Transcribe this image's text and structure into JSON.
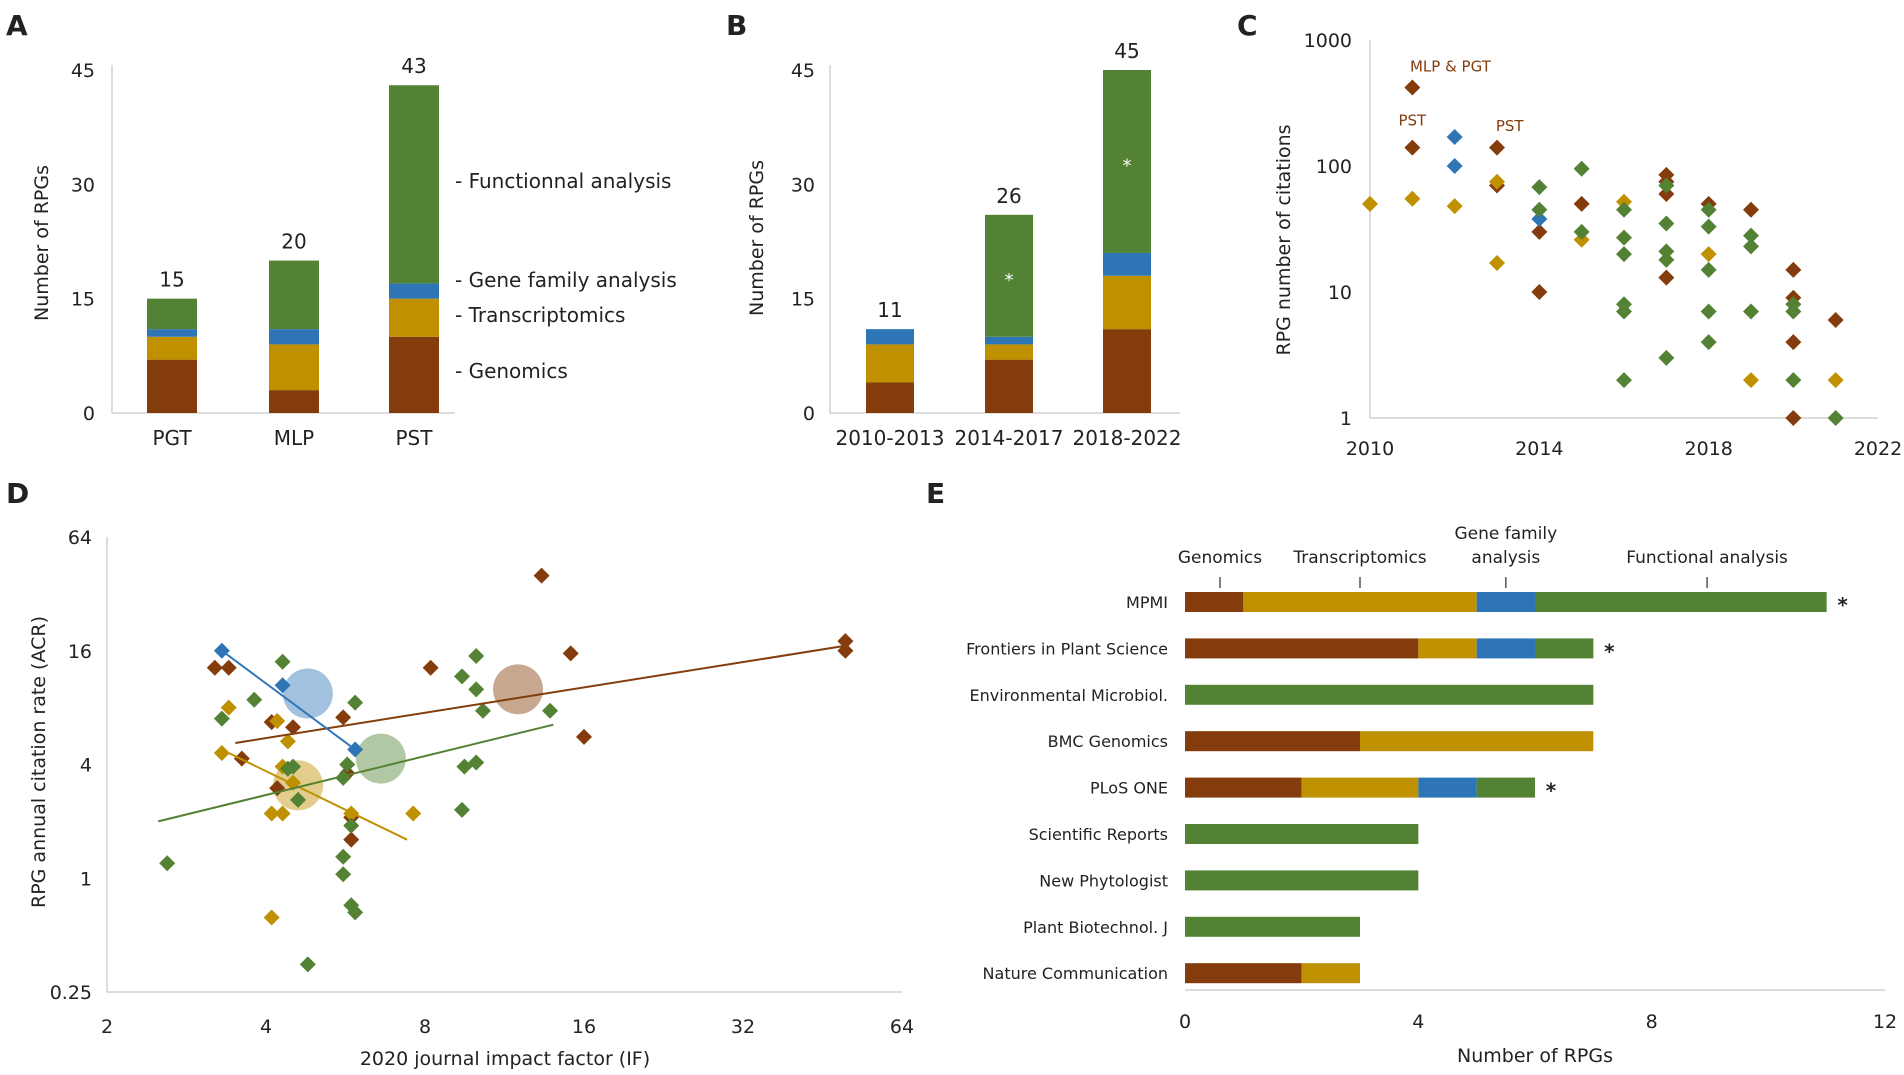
{
  "colors": {
    "genomics": "#843c0c",
    "transcriptomics": "#bf9000",
    "gene_family": "#2e75b6",
    "functional": "#548235"
  },
  "chart_data": [
    {
      "panel": "A",
      "type": "bar",
      "stacked": true,
      "title": "",
      "xlabel": "",
      "ylabel": "Number of RPGs",
      "ylim": [
        0,
        45
      ],
      "yticks": [
        "0",
        "15",
        "30",
        "45"
      ],
      "categories": [
        "PGT",
        "MLP",
        "PST"
      ],
      "totals": [
        "15",
        "20",
        "43"
      ],
      "series": [
        {
          "name": "- Genomics",
          "color_key": "genomics",
          "values": [
            7,
            3,
            10
          ]
        },
        {
          "name": "- Transcriptomics",
          "color_key": "transcriptomics",
          "values": [
            3,
            6,
            5
          ]
        },
        {
          "name": "- Gene family analysis",
          "color_key": "gene_family",
          "values": [
            1,
            2,
            2
          ]
        },
        {
          "name": "- Functionnal analysis",
          "color_key": "functional",
          "values": [
            4,
            9,
            26
          ]
        }
      ]
    },
    {
      "panel": "B",
      "type": "bar",
      "stacked": true,
      "xlabel": "",
      "ylabel": "Number of RPGs",
      "ylim": [
        0,
        45
      ],
      "yticks": [
        "0",
        "15",
        "30",
        "45"
      ],
      "categories": [
        "2010-2013",
        "2014-2017",
        "2018-2022"
      ],
      "totals": [
        "11",
        "26",
        "45"
      ],
      "series": [
        {
          "name": "Genomics",
          "color_key": "genomics",
          "values": [
            4,
            7,
            11
          ]
        },
        {
          "name": "Transcriptomics",
          "color_key": "transcriptomics",
          "values": [
            5,
            2,
            7
          ]
        },
        {
          "name": "Gene family analysis",
          "color_key": "gene_family",
          "values": [
            2,
            1,
            3
          ]
        },
        {
          "name": "Functional analysis",
          "color_key": "functional",
          "values": [
            0,
            16,
            24
          ]
        }
      ],
      "annotations": [
        {
          "category": "2014-2017",
          "text": "*"
        },
        {
          "category": "2018-2022",
          "text": "*"
        }
      ]
    },
    {
      "panel": "C",
      "type": "scatter",
      "xlabel": "",
      "ylabel": "RPG number of citations",
      "xlim": [
        2010,
        2022
      ],
      "ylim": [
        1,
        1000
      ],
      "yscale": "log",
      "xticks": [
        "2010",
        "2014",
        "2018",
        "2022"
      ],
      "yticks": [
        "1",
        "10",
        "100",
        "1000"
      ],
      "labels": [
        {
          "text": "MLP & PGT",
          "x": 2011.9,
          "y": 560
        },
        {
          "text": "PST",
          "x": 2011,
          "y": 210
        },
        {
          "text": "PST",
          "x": 2013.3,
          "y": 190
        }
      ],
      "series": [
        {
          "name": "Genomics",
          "color_key": "genomics",
          "points": [
            [
              2011,
              420
            ],
            [
              2011,
              140
            ],
            [
              2013,
              140
            ],
            [
              2013,
              70
            ],
            [
              2014,
              30
            ],
            [
              2014,
              10
            ],
            [
              2015,
              50
            ],
            [
              2017,
              85
            ],
            [
              2017,
              75
            ],
            [
              2017,
              60
            ],
            [
              2017,
              13
            ],
            [
              2018,
              50
            ],
            [
              2019,
              45
            ],
            [
              2020,
              15
            ],
            [
              2020,
              9
            ],
            [
              2020,
              4
            ],
            [
              2020,
              1
            ],
            [
              2021,
              6
            ]
          ]
        },
        {
          "name": "Transcriptomics",
          "color_key": "transcriptomics",
          "points": [
            [
              2010,
              50
            ],
            [
              2011,
              55
            ],
            [
              2012,
              48
            ],
            [
              2013,
              75
            ],
            [
              2013,
              17
            ],
            [
              2015,
              26
            ],
            [
              2016,
              52
            ],
            [
              2018,
              20
            ],
            [
              2019,
              2
            ],
            [
              2021,
              2
            ]
          ]
        },
        {
          "name": "Gene family analysis",
          "color_key": "gene_family",
          "points": [
            [
              2012,
              170
            ],
            [
              2012,
              100
            ],
            [
              2014,
              38
            ]
          ]
        },
        {
          "name": "Functional analysis",
          "color_key": "functional",
          "points": [
            [
              2014,
              68
            ],
            [
              2014,
              45
            ],
            [
              2015,
              95
            ],
            [
              2015,
              30
            ],
            [
              2016,
              45
            ],
            [
              2016,
              27
            ],
            [
              2016,
              20
            ],
            [
              2016,
              8
            ],
            [
              2016,
              7
            ],
            [
              2016,
              2
            ],
            [
              2017,
              70
            ],
            [
              2017,
              35
            ],
            [
              2017,
              21
            ],
            [
              2017,
              18
            ],
            [
              2017,
              3
            ],
            [
              2018,
              45
            ],
            [
              2018,
              33
            ],
            [
              2018,
              15
            ],
            [
              2018,
              7
            ],
            [
              2018,
              4
            ],
            [
              2019,
              28
            ],
            [
              2019,
              23
            ],
            [
              2019,
              7
            ],
            [
              2020,
              8
            ],
            [
              2020,
              7
            ],
            [
              2020,
              2
            ],
            [
              2021,
              1
            ]
          ]
        }
      ]
    },
    {
      "panel": "D",
      "type": "scatter",
      "xlabel": "2020 journal impact factor (IF)",
      "ylabel": "RPG annual citation rate (ACR)",
      "xscale": "log2",
      "yscale": "log4",
      "xlim": [
        2,
        64
      ],
      "ylim": [
        0.25,
        64
      ],
      "xticks": [
        "2",
        "4",
        "8",
        "16",
        "32",
        "64"
      ],
      "yticks": [
        "0.25",
        "1",
        "4",
        "16",
        "64"
      ],
      "series": [
        {
          "name": "Genomics",
          "color_key": "genomics",
          "points": [
            [
              3.2,
              13
            ],
            [
              3.4,
              13
            ],
            [
              3.6,
              4.3
            ],
            [
              4.1,
              6.7
            ],
            [
              4.2,
              3
            ],
            [
              4.5,
              6.3
            ],
            [
              5.6,
              7.1
            ],
            [
              5.7,
              3.6
            ],
            [
              5.8,
              2.1
            ],
            [
              5.8,
              1.6
            ],
            [
              8.2,
              13
            ],
            [
              13.3,
              40
            ],
            [
              15.1,
              15.5
            ],
            [
              16,
              5.6
            ],
            [
              50,
              16
            ],
            [
              50,
              18
            ]
          ],
          "trend": [
            [
              3.5,
              5.2
            ],
            [
              50,
              17
            ]
          ],
          "mean": {
            "x": 12,
            "y": 10,
            "r": 22
          }
        },
        {
          "name": "Transcriptomics",
          "color_key": "transcriptomics",
          "points": [
            [
              3.3,
              4.6
            ],
            [
              3.4,
              8
            ],
            [
              4.1,
              2.2
            ],
            [
              4.1,
              0.62
            ],
            [
              4.3,
              2.2
            ],
            [
              4.4,
              5.3
            ],
            [
              4.3,
              3.9
            ],
            [
              4.5,
              3.2
            ],
            [
              5.8,
              2.2
            ],
            [
              7.6,
              2.2
            ],
            [
              4.2,
              6.8
            ]
          ],
          "trend": [
            [
              3.4,
              4.6
            ],
            [
              7.4,
              1.6
            ]
          ],
          "mean": {
            "x": 4.6,
            "y": 3.1,
            "r": 22
          }
        },
        {
          "name": "Gene family analysis",
          "color_key": "gene_family",
          "points": [
            [
              3.3,
              16
            ],
            [
              4.3,
              10.5
            ],
            [
              5.9,
              4.8
            ]
          ],
          "trend": [
            [
              3.3,
              16
            ],
            [
              5.9,
              4.8
            ]
          ],
          "mean": {
            "x": 4.8,
            "y": 9.5,
            "r": 22
          }
        },
        {
          "name": "Functional analysis",
          "color_key": "functional",
          "points": [
            [
              2.6,
              1.2
            ],
            [
              3.3,
              7
            ],
            [
              3.8,
              8.8
            ],
            [
              4.3,
              14
            ],
            [
              4.4,
              3.8
            ],
            [
              4.5,
              3.9
            ],
            [
              4.6,
              2.6
            ],
            [
              4.8,
              0.35
            ],
            [
              5.6,
              3.4
            ],
            [
              5.6,
              1.3
            ],
            [
              5.6,
              1.05
            ],
            [
              5.7,
              4
            ],
            [
              5.8,
              0.72
            ],
            [
              5.9,
              0.66
            ],
            [
              5.8,
              1.9
            ],
            [
              5.9,
              8.5
            ],
            [
              9.4,
              11.7
            ],
            [
              9.4,
              2.3
            ],
            [
              9.5,
              3.9
            ],
            [
              10,
              4.1
            ],
            [
              10,
              15
            ],
            [
              10,
              10
            ],
            [
              10.3,
              7.7
            ],
            [
              13.8,
              7.7
            ]
          ],
          "trend": [
            [
              2.5,
              2
            ],
            [
              14,
              6.5
            ]
          ],
          "mean": {
            "x": 6.6,
            "y": 4.3,
            "r": 22
          }
        }
      ]
    },
    {
      "panel": "E",
      "type": "bar",
      "orientation": "horizontal",
      "stacked": true,
      "xlabel": "Number of RPGs",
      "ylabel": "",
      "xlim": [
        0,
        12
      ],
      "xticks": [
        "0",
        "4",
        "8",
        "12"
      ],
      "categories": [
        "MPMI",
        "Frontiers in Plant Science",
        "Environmental Microbiol.",
        "BMC Genomics",
        "PLoS ONE",
        "Scientific Reports",
        "New Phytologist",
        "Plant Biotechnol. J",
        "Nature Communication"
      ],
      "stars": [
        "*",
        "*",
        "",
        "",
        "*",
        "",
        "",
        "",
        ""
      ],
      "series": [
        {
          "name": "Genomics",
          "color_key": "genomics",
          "values": [
            1,
            4,
            0,
            3,
            2,
            0,
            0,
            0,
            2
          ]
        },
        {
          "name": "Transcriptomics",
          "color_key": "transcriptomics",
          "values": [
            4,
            1,
            0,
            4,
            2,
            0,
            0,
            0,
            1
          ]
        },
        {
          "name": "Gene family analysis",
          "color_key": "gene_family",
          "values": [
            1,
            1,
            0,
            0,
            1,
            0,
            0,
            0,
            0
          ]
        },
        {
          "name": "Functional analysis",
          "color_key": "functional",
          "values": [
            5,
            1,
            7,
            0,
            1,
            4,
            4,
            3,
            0
          ]
        }
      ],
      "legend": [
        {
          "lines": [
            "Genomics"
          ],
          "x": 0.6
        },
        {
          "lines": [
            "Transcriptomics"
          ],
          "x": 3.0
        },
        {
          "lines": [
            "Gene family",
            "analysis"
          ],
          "x": 5.5
        },
        {
          "lines": [
            "Functional analysis"
          ],
          "x": 8.95
        }
      ]
    }
  ]
}
